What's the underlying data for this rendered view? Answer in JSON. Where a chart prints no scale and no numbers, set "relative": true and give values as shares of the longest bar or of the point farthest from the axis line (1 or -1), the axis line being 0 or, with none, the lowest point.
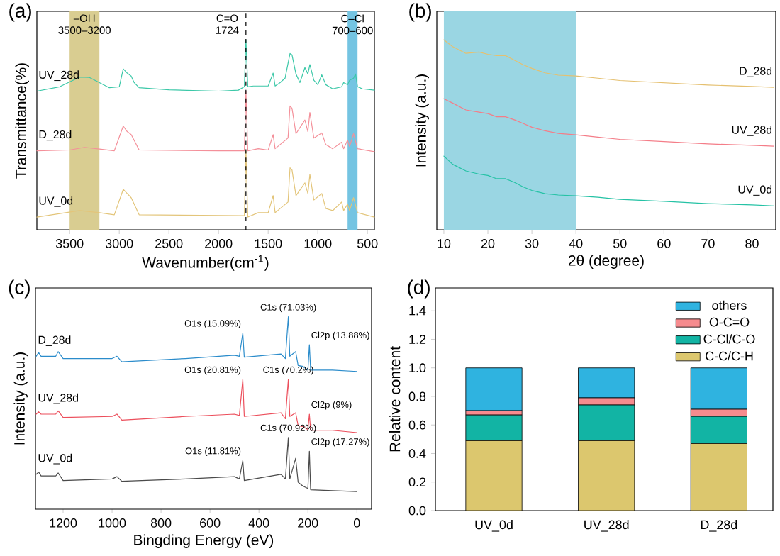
{
  "chart_data": [
    {
      "type": "line",
      "title": "(a)",
      "xlabel": "Wavenumber(cm$^{-1}$)",
      "ylabel": "Transmittance(%)",
      "relative": true,
      "xlim": [
        3830,
        430
      ],
      "xticks": [
        3500,
        3000,
        2500,
        2000,
        1500,
        1000,
        500
      ],
      "series": [
        {
          "name": "UV_28d",
          "color": "#3cc8a8",
          "x": [
            3830,
            3600,
            3400,
            3300,
            3200,
            3100,
            3000,
            2960,
            2920,
            2880,
            2850,
            2800,
            2500,
            2000,
            1800,
            1740,
            1724,
            1705,
            1650,
            1500,
            1450,
            1430,
            1380,
            1330,
            1280,
            1260,
            1220,
            1180,
            1130,
            1100,
            1080,
            1040,
            1000,
            960,
            920,
            850,
            760,
            740,
            700,
            680,
            640,
            620,
            600,
            550,
            430
          ],
          "values": [
            0.73,
            0.753,
            0.804,
            0.802,
            0.775,
            0.748,
            0.753,
            0.847,
            0.825,
            0.809,
            0.775,
            0.748,
            0.737,
            0.73,
            0.735,
            0.753,
            1.0,
            0.753,
            0.757,
            0.757,
            0.825,
            0.757,
            0.775,
            0.798,
            0.928,
            0.921,
            0.82,
            0.775,
            0.854,
            0.82,
            0.87,
            0.787,
            0.764,
            0.816,
            0.764,
            0.742,
            0.753,
            0.775,
            0.764,
            0.787,
            0.798,
            0.82,
            0.753,
            0.742,
            0.735
          ]
        },
        {
          "name": "D_28d",
          "color": "#f4909a",
          "x": [
            3830,
            3500,
            3350,
            3200,
            3050,
            2960,
            2920,
            2880,
            2840,
            2800,
            2000,
            1740,
            1724,
            1705,
            1600,
            1500,
            1450,
            1430,
            1300,
            1280,
            1260,
            1220,
            1130,
            1100,
            1080,
            1040,
            960,
            920,
            850,
            760,
            740,
            700,
            680,
            640,
            600,
            430
          ],
          "values": [
            0.416,
            0.42,
            0.434,
            0.425,
            0.416,
            0.546,
            0.517,
            0.501,
            0.461,
            0.42,
            0.416,
            0.416,
            0.73,
            0.416,
            0.427,
            0.42,
            0.501,
            0.427,
            0.483,
            0.652,
            0.64,
            0.506,
            0.578,
            0.517,
            0.618,
            0.483,
            0.51,
            0.449,
            0.427,
            0.461,
            0.427,
            0.472,
            0.438,
            0.506,
            0.427,
            0.411
          ]
        },
        {
          "name": "UV_0d",
          "color": "#e3c57a",
          "x": [
            3830,
            3400,
            3200,
            3050,
            2960,
            2920,
            2880,
            2840,
            2800,
            1740,
            1724,
            1705,
            1600,
            1500,
            1450,
            1430,
            1300,
            1280,
            1260,
            1220,
            1130,
            1100,
            1080,
            1040,
            960,
            920,
            850,
            760,
            740,
            700,
            680,
            640,
            600,
            430
          ],
          "values": [
            0.067,
            0.101,
            0.09,
            0.079,
            0.213,
            0.191,
            0.169,
            0.124,
            0.079,
            0.074,
            0.416,
            0.067,
            0.09,
            0.09,
            0.18,
            0.09,
            0.146,
            0.326,
            0.315,
            0.18,
            0.247,
            0.191,
            0.292,
            0.157,
            0.191,
            0.112,
            0.101,
            0.146,
            0.101,
            0.135,
            0.101,
            0.169,
            0.09,
            0.067
          ]
        }
      ],
      "ref_lines": [
        {
          "axis": "x",
          "value": 1724,
          "label": "C=O 1724",
          "line_style": "dashed"
        }
      ],
      "bands": [
        {
          "axis": "x",
          "from": 3500,
          "to": 3200,
          "label": "–OH 3500–3200",
          "color": "#d9cd91"
        },
        {
          "axis": "x",
          "from": 700,
          "to": 600,
          "label": "C–Cl 700–600",
          "color": "#74c4e2"
        }
      ]
    },
    {
      "type": "line",
      "title": "(b)",
      "xlabel": "2θ (degree)",
      "ylabel": "Intensity (a.u.)",
      "relative": true,
      "xlim": [
        8.4,
        85.4
      ],
      "xticks": [
        10,
        20,
        30,
        40,
        50,
        60,
        70,
        80
      ],
      "x": [
        10,
        12,
        15,
        18,
        20,
        22,
        24,
        26,
        28,
        30,
        33,
        36,
        40,
        45,
        50,
        60,
        70,
        80,
        85
      ],
      "series": [
        {
          "name": "D_28d",
          "color": "#e5c070",
          "values": [
            1.0,
            0.964,
            0.929,
            0.936,
            0.924,
            0.917,
            0.917,
            0.893,
            0.869,
            0.85,
            0.826,
            0.814,
            0.81,
            0.798,
            0.786,
            0.774,
            0.762,
            0.755,
            0.75
          ]
        },
        {
          "name": "UV_28d",
          "color": "#f47d88",
          "values": [
            0.69,
            0.667,
            0.631,
            0.619,
            0.612,
            0.595,
            0.595,
            0.579,
            0.56,
            0.54,
            0.521,
            0.507,
            0.5,
            0.488,
            0.476,
            0.464,
            0.452,
            0.445,
            0.44
          ]
        },
        {
          "name": "UV_0d",
          "color": "#25c2a5",
          "values": [
            0.388,
            0.345,
            0.31,
            0.293,
            0.286,
            0.269,
            0.269,
            0.25,
            0.226,
            0.207,
            0.19,
            0.183,
            0.179,
            0.171,
            0.16,
            0.15,
            0.138,
            0.131,
            0.126
          ]
        }
      ],
      "bands": [
        {
          "axis": "x",
          "from": 10,
          "to": 40,
          "color": "#9ad6e3"
        }
      ]
    },
    {
      "type": "line",
      "title": "(c)",
      "xlabel": "Bingding Energy (eV)",
      "ylabel": "Intensity (a.u.)",
      "relative": true,
      "xlim": [
        1313,
        -60
      ],
      "xticks": [
        1200,
        1000,
        800,
        600,
        400,
        200,
        0
      ],
      "x": [
        1310,
        1300,
        1290,
        1230,
        1220,
        1200,
        1000,
        980,
        960,
        700,
        500,
        480,
        466,
        460,
        310,
        292,
        280,
        274,
        250,
        240,
        220,
        200,
        194,
        189,
        100,
        0
      ],
      "series": [
        {
          "name": "D_28d",
          "color": "#2b8ccb",
          "values": [
            0.795,
            0.814,
            0.795,
            0.795,
            0.819,
            0.783,
            0.783,
            0.795,
            0.766,
            0.783,
            0.8,
            0.795,
            0.916,
            0.79,
            0.807,
            0.783,
            1.0,
            0.795,
            0.819,
            0.747,
            0.742,
            0.723,
            0.855,
            0.723,
            0.723,
            0.716
          ]
        },
        {
          "name": "UV_28d",
          "color": "#ec4f5c",
          "values": [
            0.494,
            0.506,
            0.494,
            0.494,
            0.511,
            0.477,
            0.482,
            0.494,
            0.463,
            0.482,
            0.494,
            0.487,
            0.675,
            0.482,
            0.501,
            0.47,
            0.675,
            0.482,
            0.501,
            0.434,
            0.429,
            0.414,
            0.494,
            0.41,
            0.41,
            0.398
          ]
        },
        {
          "name": "UV_0d",
          "color": "#4a4a4a",
          "values": [
            0.181,
            0.193,
            0.173,
            0.173,
            0.188,
            0.149,
            0.157,
            0.169,
            0.145,
            0.157,
            0.169,
            0.157,
            0.253,
            0.149,
            0.181,
            0.157,
            0.373,
            0.157,
            0.265,
            0.14,
            0.12,
            0.108,
            0.301,
            0.101,
            0.096,
            0.092
          ]
        }
      ],
      "annotations": [
        {
          "text": "O1s (15.09%)",
          "x": 466,
          "y": 0.916
        },
        {
          "text": "C1s (71.03%)",
          "x": 280,
          "y": 1.0
        },
        {
          "text": "Cl2p (13.88%)",
          "x": 194,
          "y": 0.855
        },
        {
          "text": "O1s (20.81%)",
          "x": 466,
          "y": 0.675
        },
        {
          "text": "C1s (70.2%)",
          "x": 280,
          "y": 0.675
        },
        {
          "text": "Cl2p (9%)",
          "x": 194,
          "y": 0.494
        },
        {
          "text": "O1s (11.81%)",
          "x": 466,
          "y": 0.253
        },
        {
          "text": "C1s (70.92%)",
          "x": 280,
          "y": 0.373
        },
        {
          "text": "Cl2p (17.27%)",
          "x": 194,
          "y": 0.301
        }
      ]
    },
    {
      "type": "bar",
      "title": "(d)",
      "ylabel": "Relative content",
      "stacked": true,
      "legend": "top right",
      "categories": [
        "UV_0d",
        "UV_28d",
        "D_28d"
      ],
      "ylim": [
        0,
        1.56
      ],
      "yticks": [
        {
          "value": 0,
          "label": "0.0"
        },
        0.2,
        0.4,
        0.6,
        0.8,
        {
          "value": 1,
          "label": "1.0"
        },
        1.2,
        1.4
      ],
      "series": [
        {
          "name": "C-C/C-H",
          "color": "#dcc76e",
          "values": [
            0.49,
            0.49,
            0.47
          ]
        },
        {
          "name": "C-Cl/C-O",
          "color": "#12b4a4",
          "values": [
            0.18,
            0.25,
            0.19
          ]
        },
        {
          "name": "O-C=O",
          "color": "#f68b8e",
          "values": [
            0.03,
            0.05,
            0.05
          ]
        },
        {
          "name": "others",
          "color": "#2fb3e0",
          "values": [
            0.3,
            0.21,
            0.29
          ]
        }
      ]
    }
  ]
}
